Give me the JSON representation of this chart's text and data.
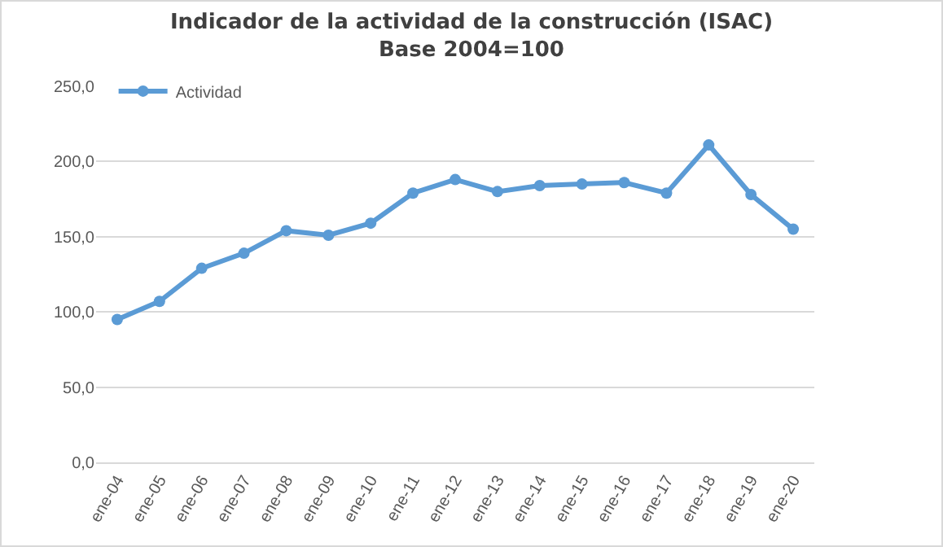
{
  "chart_data": {
    "type": "line",
    "title": "Indicador de la actividad de la construcción (ISAC)",
    "subtitle": "Base 2004=100",
    "categories": [
      "ene-04",
      "ene-05",
      "ene-06",
      "ene-07",
      "ene-08",
      "ene-09",
      "ene-10",
      "ene-11",
      "ene-12",
      "ene-13",
      "ene-14",
      "ene-15",
      "ene-16",
      "ene-17",
      "ene-18",
      "ene-19",
      "ene-20"
    ],
    "series": [
      {
        "name": "Actividad",
        "color": "#5b9bd5",
        "values": [
          95,
          107,
          129,
          139,
          154,
          151,
          159,
          179,
          188,
          180,
          184,
          185,
          186,
          179,
          211,
          178,
          155
        ]
      }
    ],
    "ylim": [
      0,
      250
    ],
    "yticks": [
      {
        "value": 0,
        "label": "0,0"
      },
      {
        "value": 50,
        "label": "50,0"
      },
      {
        "value": 100,
        "label": "100,0"
      },
      {
        "value": 150,
        "label": "150,0"
      },
      {
        "value": 200,
        "label": "200,0"
      },
      {
        "value": 250,
        "label": "250,0"
      }
    ],
    "grid": "y",
    "legend": "top left",
    "marker": "circle",
    "line_style": "solid"
  }
}
